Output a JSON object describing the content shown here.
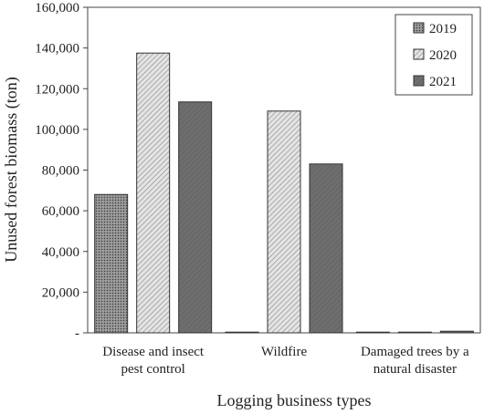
{
  "chart_data": {
    "type": "bar",
    "xlabel": "Logging business types",
    "ylabel": "Unused forest biomass (ton)",
    "categories": [
      [
        "Disease and insect",
        "pest control"
      ],
      [
        "Wildfire"
      ],
      [
        "Damaged trees by a",
        "natural disaster"
      ]
    ],
    "series": [
      {
        "name": "2019",
        "values": [
          68000,
          0,
          0
        ],
        "pattern": "dots"
      },
      {
        "name": "2020",
        "values": [
          137500,
          109000,
          0
        ],
        "pattern": "hatch"
      },
      {
        "name": "2021",
        "values": [
          113500,
          83000,
          800
        ],
        "pattern": "solid"
      }
    ],
    "ylim": [
      0,
      160000
    ],
    "yticks": [
      0,
      20000,
      40000,
      60000,
      80000,
      100000,
      120000,
      140000,
      160000
    ],
    "ytick_labels": [
      "-",
      "20,000",
      "40,000",
      "60,000",
      "80,000",
      "100,000",
      "120,000",
      "140,000",
      "160,000"
    ],
    "grid": false,
    "legend_position": "top-right"
  }
}
